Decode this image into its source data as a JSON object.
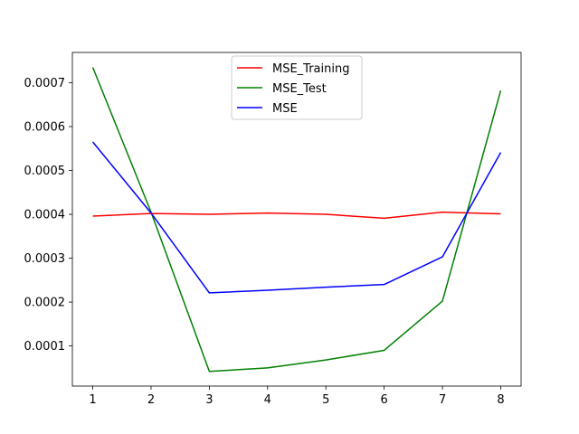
{
  "chart_data": {
    "type": "line",
    "x": [
      1,
      2,
      3,
      4,
      5,
      6,
      7,
      8
    ],
    "series": [
      {
        "name": "MSE_Training",
        "color": "#ff0000",
        "values": [
          0.000396,
          0.000402,
          0.0004,
          0.000403,
          0.0004,
          0.000391,
          0.000405,
          0.000401
        ]
      },
      {
        "name": "MSE_Test",
        "color": "#008000",
        "values": [
          0.000735,
          0.000405,
          4.2e-05,
          5e-05,
          6.8e-05,
          9e-05,
          0.000202,
          0.000682
        ]
      },
      {
        "name": "MSE",
        "color": "#0000ff",
        "values": [
          0.000565,
          0.000403,
          0.000221,
          0.000227,
          0.000234,
          0.00024,
          0.000303,
          0.000541
        ]
      }
    ],
    "title": "",
    "xlabel": "",
    "ylabel": "",
    "xlim": [
      0.65,
      8.35
    ],
    "ylim": [
      8.5e-06,
      0.000769
    ],
    "xticks": [
      1,
      2,
      3,
      4,
      5,
      6,
      7,
      8
    ],
    "xtick_labels": [
      "1",
      "2",
      "3",
      "4",
      "5",
      "6",
      "7",
      "8"
    ],
    "yticks": [
      0.0001,
      0.0002,
      0.0003,
      0.0004,
      0.0005,
      0.0006,
      0.0007
    ],
    "ytick_labels": [
      "0.0001",
      "0.0002",
      "0.0003",
      "0.0004",
      "0.0005",
      "0.0006",
      "0.0007"
    ],
    "grid": false,
    "legend": "upper-center"
  }
}
